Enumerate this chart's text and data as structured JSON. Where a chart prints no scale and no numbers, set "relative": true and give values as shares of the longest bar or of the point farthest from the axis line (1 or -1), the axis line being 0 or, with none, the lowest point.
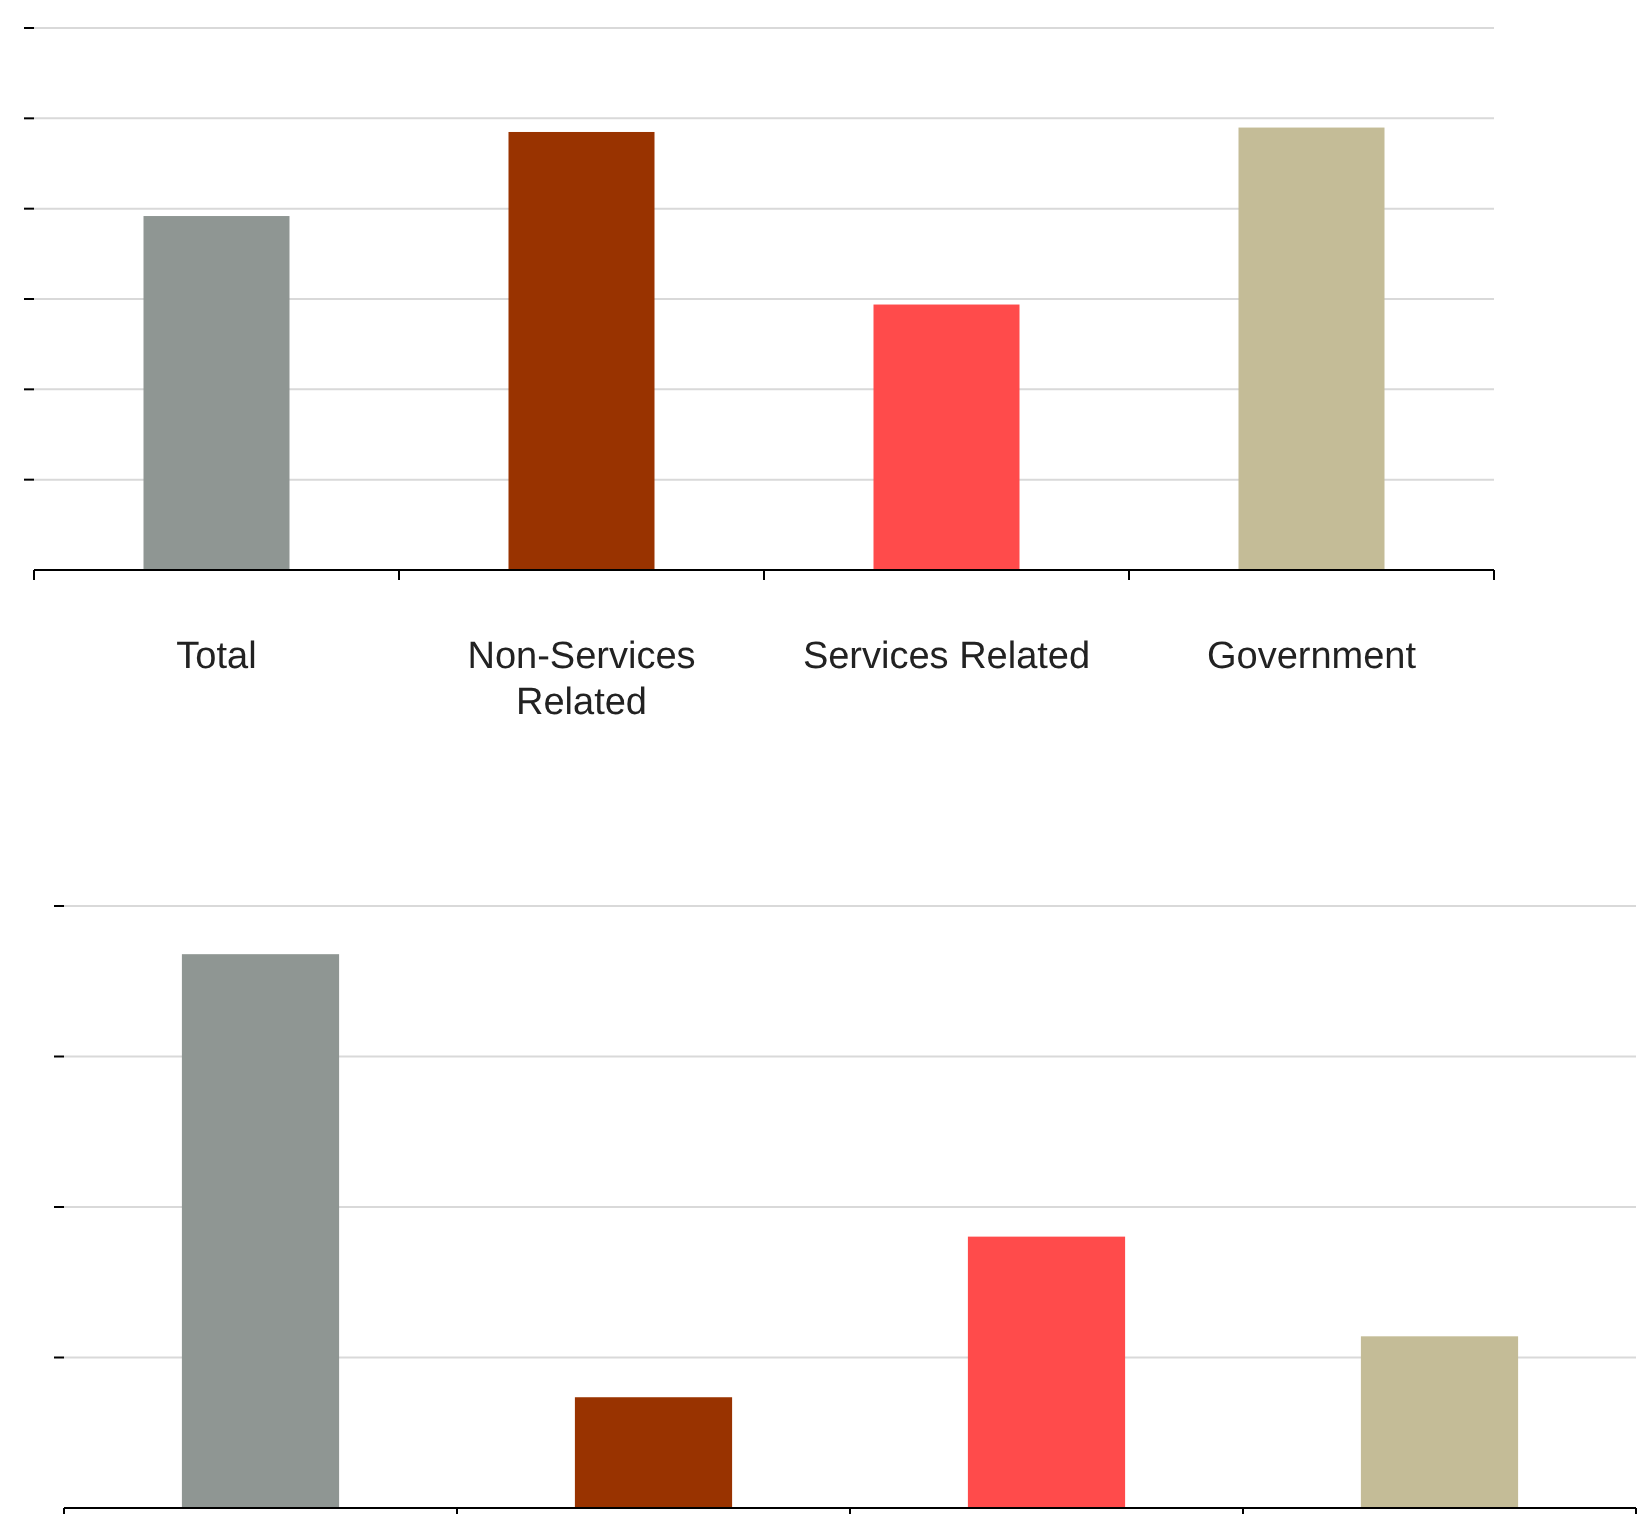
{
  "chart_data": [
    {
      "type": "bar",
      "relative": true,
      "grid": true,
      "categories": [
        "Total",
        "Non-Services Related",
        "Services Related",
        "Government"
      ],
      "values": [
        0.8,
        0.99,
        0.6,
        1
      ],
      "colors": [
        "#8f9693",
        "#993300",
        "#ff4b4b",
        "#c4bc97"
      ]
    },
    {
      "type": "bar",
      "relative": true,
      "grid": true,
      "categories": [
        null,
        null,
        null,
        null
      ],
      "values": [
        1,
        0.2,
        0.49,
        0.31
      ],
      "colors": [
        "#8f9693",
        "#993300",
        "#ff4b4b",
        "#c4bc97"
      ]
    }
  ]
}
